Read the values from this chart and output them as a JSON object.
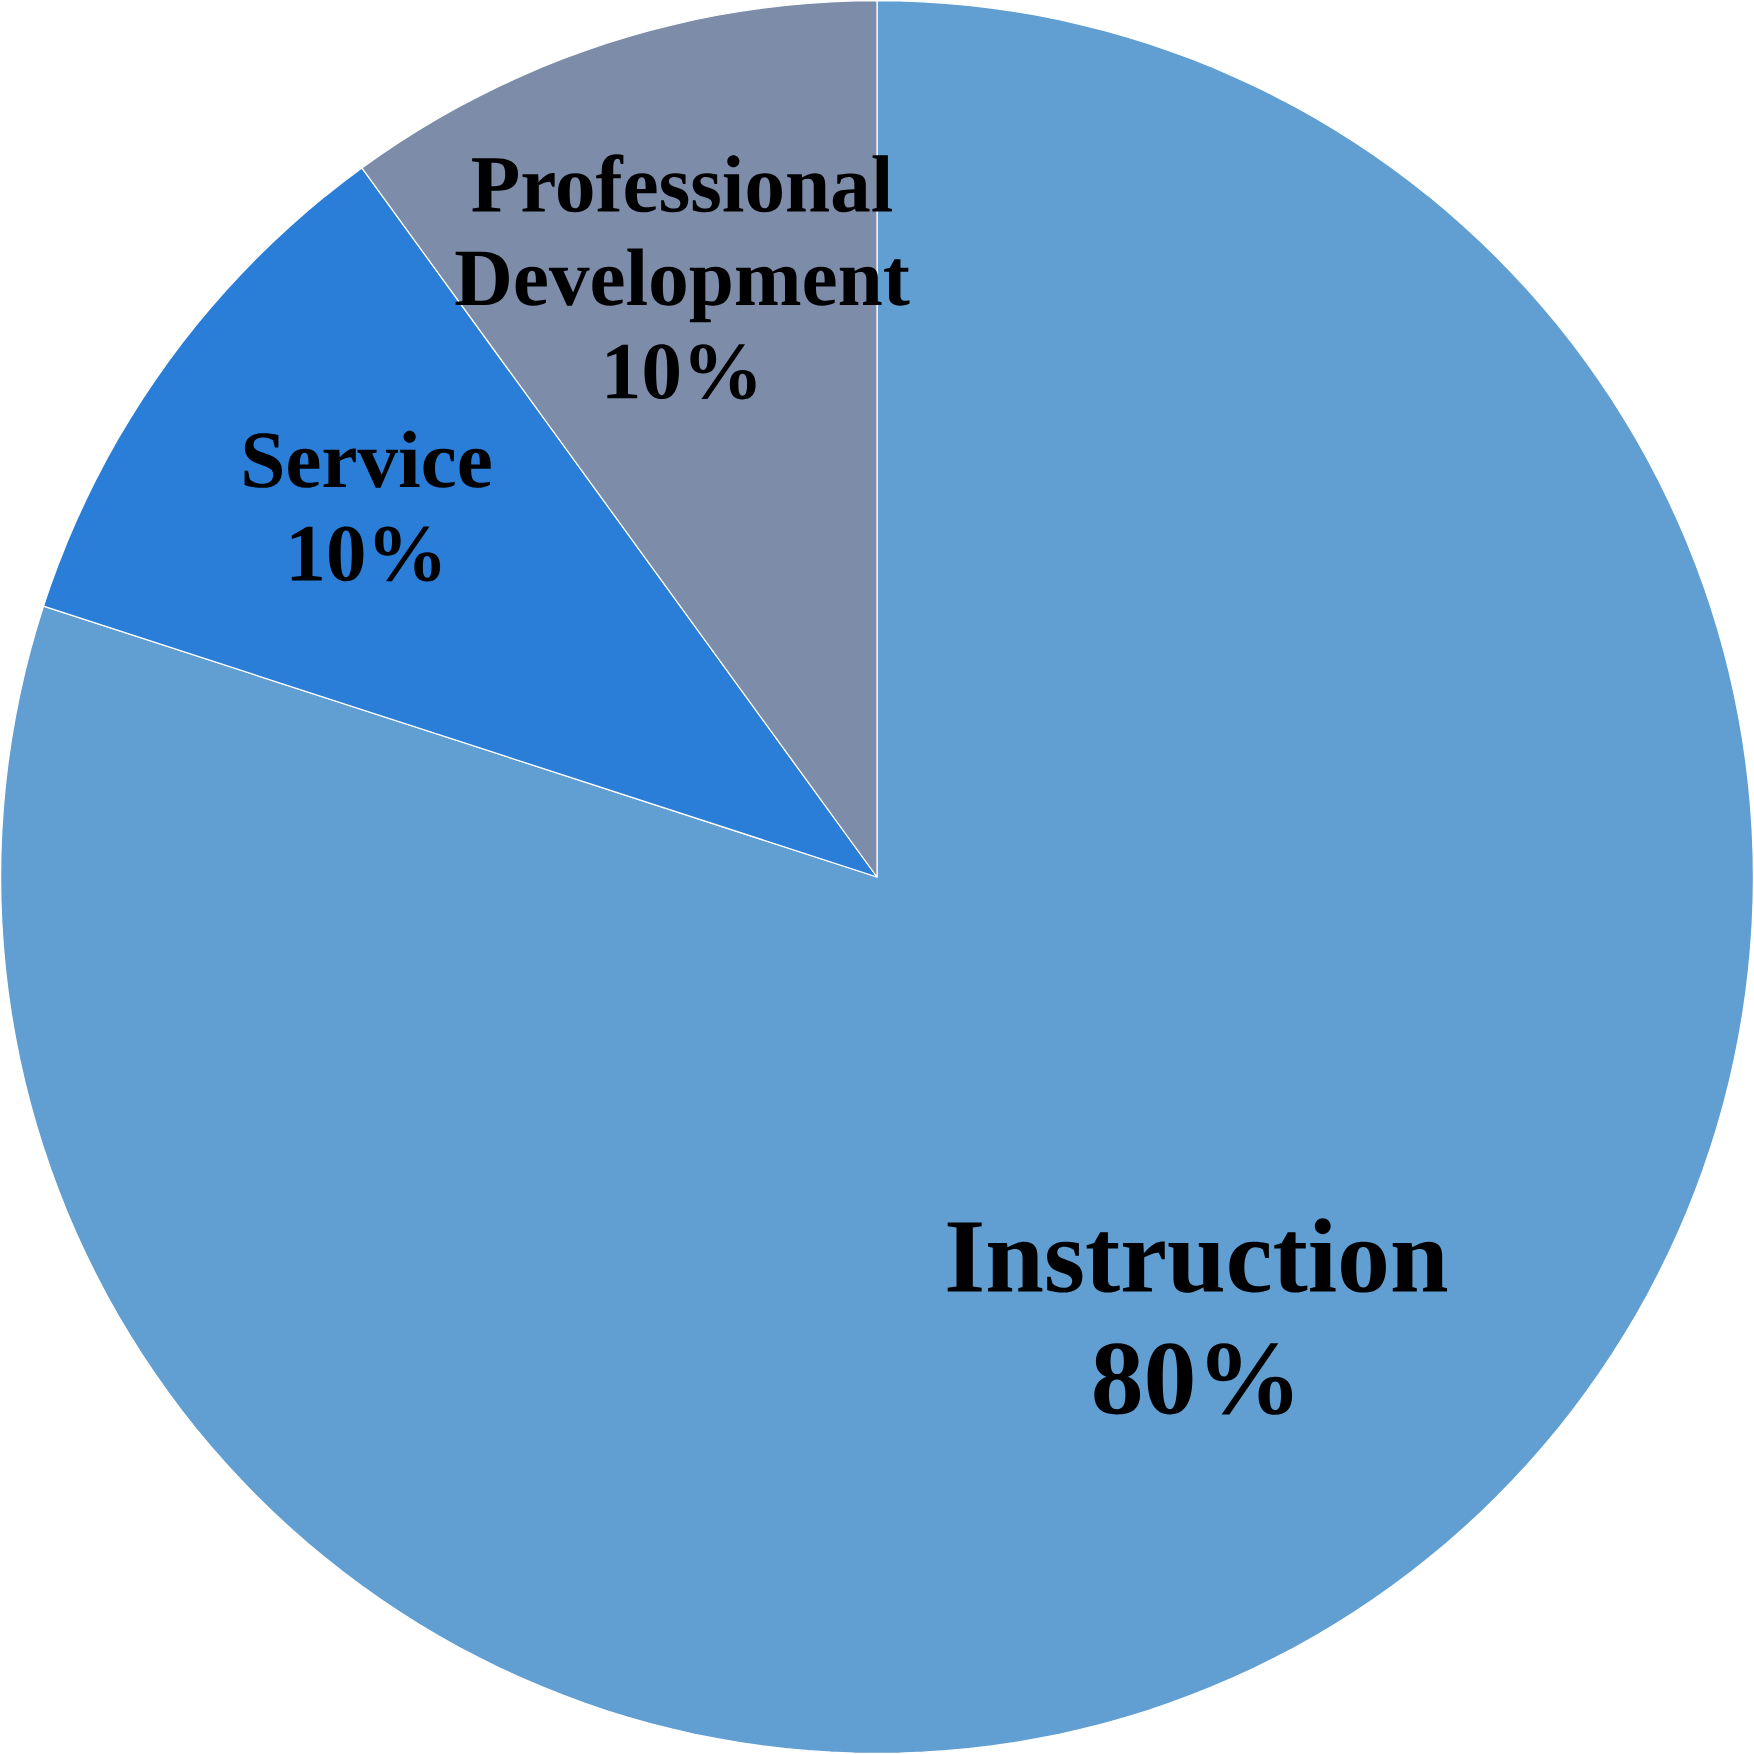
{
  "chart_data": {
    "type": "pie",
    "categories": [
      "Instruction",
      "Service",
      "Professional Development"
    ],
    "values": [
      80,
      10,
      10
    ],
    "value_labels": [
      "80%",
      "10%",
      "10%"
    ],
    "colors": [
      "#619ed2",
      "#2a7ed8",
      "#7d8ca8"
    ]
  }
}
